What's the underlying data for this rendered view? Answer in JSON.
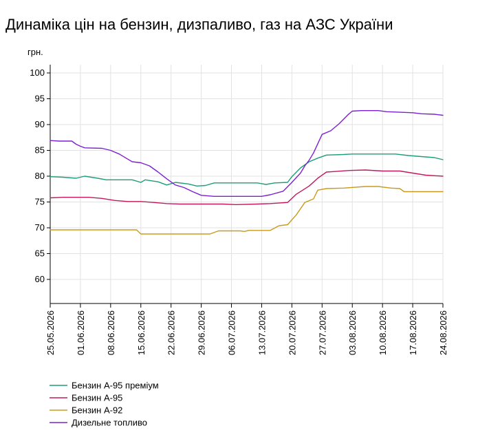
{
  "title": "Динаміка цін на бензин, дизпаливо, газ на АЗС України",
  "chart_data": {
    "type": "line",
    "title": "Динаміка цін на бензин, дизпаливо, газ на АЗС України",
    "ylabel": "грн.",
    "xlabel": "",
    "ylim": [
      55,
      100
    ],
    "yticks": [
      60,
      65,
      70,
      75,
      80,
      85,
      90,
      95,
      100
    ],
    "xlim": [
      "25.05.2026",
      "24.08.2026"
    ],
    "xticks": [
      "25.05.2026",
      "01.06.2026",
      "08.06.2026",
      "15.06.2026",
      "22.06.2026",
      "29.06.2026",
      "06.07.2026",
      "13.07.2026",
      "20.07.2026",
      "27.07.2026",
      "03.08.2026",
      "10.08.2026",
      "17.08.2026",
      "24.08.2026"
    ],
    "grid": true,
    "legend": "bottom-left",
    "series": [
      {
        "name": "Бензин А-95 преміум",
        "color": "#1a9e77",
        "points": [
          [
            "25.05.2026",
            79.9
          ],
          [
            "28.05.2026",
            79.8
          ],
          [
            "31.05.2026",
            79.6
          ],
          [
            "02.06.2026",
            80.0
          ],
          [
            "05.06.2026",
            79.6
          ],
          [
            "07.06.2026",
            79.3
          ],
          [
            "13.06.2026",
            79.3
          ],
          [
            "15.06.2026",
            78.8
          ],
          [
            "16.06.2026",
            79.3
          ],
          [
            "19.06.2026",
            78.9
          ],
          [
            "21.06.2026",
            78.3
          ],
          [
            "23.06.2026",
            78.8
          ],
          [
            "26.06.2026",
            78.5
          ],
          [
            "28.06.2026",
            78.1
          ],
          [
            "30.06.2026",
            78.2
          ],
          [
            "02.07.2026",
            78.7
          ],
          [
            "12.07.2026",
            78.7
          ],
          [
            "14.07.2026",
            78.4
          ],
          [
            "16.07.2026",
            78.7
          ],
          [
            "19.07.2026",
            78.8
          ],
          [
            "20.07.2026",
            79.9
          ],
          [
            "22.07.2026",
            81.6
          ],
          [
            "24.07.2026",
            82.8
          ],
          [
            "26.07.2026",
            83.5
          ],
          [
            "28.07.2026",
            84.1
          ],
          [
            "01.08.2026",
            84.2
          ],
          [
            "03.08.2026",
            84.3
          ],
          [
            "13.08.2026",
            84.3
          ],
          [
            "16.08.2026",
            84.0
          ],
          [
            "19.08.2026",
            83.8
          ],
          [
            "22.08.2026",
            83.6
          ],
          [
            "24.08.2026",
            83.2
          ]
        ]
      },
      {
        "name": "Бензин А-95",
        "color": "#c2185b",
        "points": [
          [
            "25.05.2026",
            75.8
          ],
          [
            "28.05.2026",
            75.9
          ],
          [
            "31.05.2026",
            75.9
          ],
          [
            "03.06.2026",
            75.9
          ],
          [
            "06.06.2026",
            75.7
          ],
          [
            "09.06.2026",
            75.3
          ],
          [
            "12.06.2026",
            75.1
          ],
          [
            "15.06.2026",
            75.1
          ],
          [
            "18.06.2026",
            74.9
          ],
          [
            "21.06.2026",
            74.7
          ],
          [
            "24.06.2026",
            74.6
          ],
          [
            "04.07.2026",
            74.6
          ],
          [
            "07.07.2026",
            74.5
          ],
          [
            "12.07.2026",
            74.6
          ],
          [
            "15.07.2026",
            74.7
          ],
          [
            "19.07.2026",
            74.9
          ],
          [
            "21.07.2026",
            76.5
          ],
          [
            "24.07.2026",
            78.1
          ],
          [
            "26.07.2026",
            79.6
          ],
          [
            "28.07.2026",
            80.8
          ],
          [
            "30.07.2026",
            80.9
          ],
          [
            "02.08.2026",
            81.1
          ],
          [
            "06.08.2026",
            81.2
          ],
          [
            "10.08.2026",
            81.0
          ],
          [
            "14.08.2026",
            81.0
          ],
          [
            "17.08.2026",
            80.6
          ],
          [
            "20.08.2026",
            80.2
          ],
          [
            "24.08.2026",
            80.0
          ]
        ]
      },
      {
        "name": "Бензин А-92",
        "color": "#c99a1a",
        "points": [
          [
            "25.05.2026",
            69.6
          ],
          [
            "14.06.2026",
            69.6
          ],
          [
            "15.06.2026",
            68.8
          ],
          [
            "01.07.2026",
            68.8
          ],
          [
            "03.07.2026",
            69.4
          ],
          [
            "08.07.2026",
            69.4
          ],
          [
            "09.07.2026",
            69.3
          ],
          [
            "10.07.2026",
            69.5
          ],
          [
            "15.07.2026",
            69.5
          ],
          [
            "17.07.2026",
            70.4
          ],
          [
            "19.07.2026",
            70.6
          ],
          [
            "21.07.2026",
            72.5
          ],
          [
            "23.07.2026",
            74.9
          ],
          [
            "25.07.2026",
            75.6
          ],
          [
            "26.07.2026",
            77.3
          ],
          [
            "28.07.2026",
            77.6
          ],
          [
            "01.08.2026",
            77.7
          ],
          [
            "06.08.2026",
            78.0
          ],
          [
            "09.08.2026",
            78.0
          ],
          [
            "12.08.2026",
            77.7
          ],
          [
            "14.08.2026",
            77.6
          ],
          [
            "15.08.2026",
            77.0
          ],
          [
            "24.08.2026",
            77.0
          ]
        ]
      },
      {
        "name": "Дизельне топливо",
        "color": "#7b1fd2",
        "points": [
          [
            "25.05.2026",
            86.9
          ],
          [
            "27.05.2026",
            86.8
          ],
          [
            "30.05.2026",
            86.8
          ],
          [
            "31.05.2026",
            86.2
          ],
          [
            "01.06.2026",
            85.8
          ],
          [
            "02.06.2026",
            85.5
          ],
          [
            "06.06.2026",
            85.4
          ],
          [
            "08.06.2026",
            85.0
          ],
          [
            "10.06.2026",
            84.3
          ],
          [
            "12.06.2026",
            83.3
          ],
          [
            "13.06.2026",
            82.8
          ],
          [
            "15.06.2026",
            82.6
          ],
          [
            "17.06.2026",
            82.0
          ],
          [
            "19.06.2026",
            80.8
          ],
          [
            "21.06.2026",
            79.5
          ],
          [
            "23.06.2026",
            78.3
          ],
          [
            "25.06.2026",
            77.8
          ],
          [
            "27.06.2026",
            77.0
          ],
          [
            "29.06.2026",
            76.3
          ],
          [
            "02.07.2026",
            76.1
          ],
          [
            "13.07.2026",
            76.1
          ],
          [
            "15.07.2026",
            76.4
          ],
          [
            "18.07.2026",
            77.1
          ],
          [
            "20.07.2026",
            78.8
          ],
          [
            "22.07.2026",
            80.6
          ],
          [
            "23.07.2026",
            82.0
          ],
          [
            "24.07.2026",
            83.1
          ],
          [
            "25.07.2026",
            84.5
          ],
          [
            "27.07.2026",
            88.1
          ],
          [
            "29.07.2026",
            88.8
          ],
          [
            "31.07.2026",
            90.2
          ],
          [
            "02.08.2026",
            91.9
          ],
          [
            "03.08.2026",
            92.6
          ],
          [
            "05.08.2026",
            92.7
          ],
          [
            "09.08.2026",
            92.7
          ],
          [
            "11.08.2026",
            92.5
          ],
          [
            "17.08.2026",
            92.3
          ],
          [
            "19.08.2026",
            92.1
          ],
          [
            "22.08.2026",
            92.0
          ],
          [
            "24.08.2026",
            91.8
          ]
        ]
      }
    ]
  }
}
